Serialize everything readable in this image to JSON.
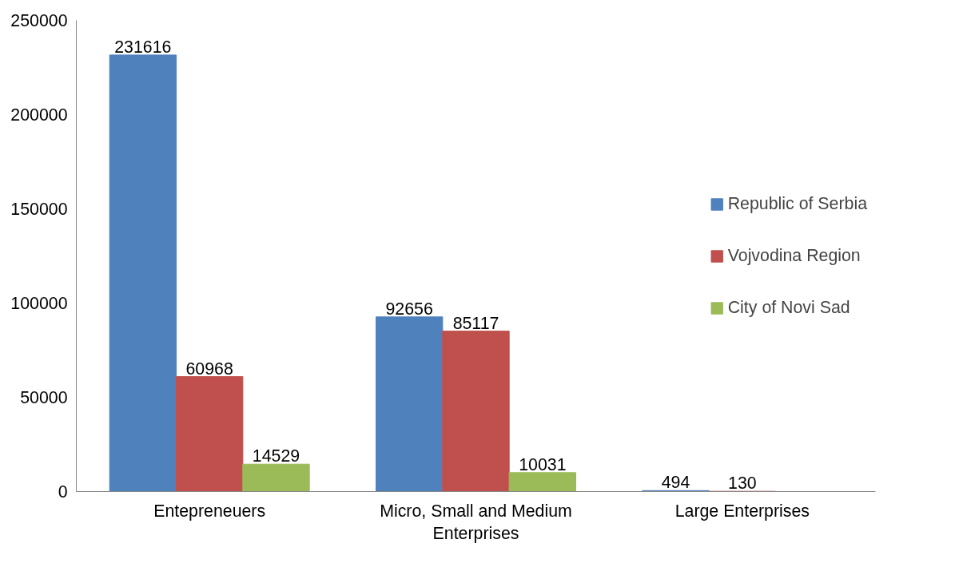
{
  "chart_data": {
    "type": "bar",
    "categories": [
      "Entepreneuers",
      "Micro, Small and Medium Enterprises",
      "Large Enterprises"
    ],
    "series": [
      {
        "name": "Republic of Serbia",
        "color": "#4f81bd",
        "values": [
          231616,
          92656,
          494
        ],
        "value_labels": [
          "231616",
          "92656",
          "494"
        ]
      },
      {
        "name": "Vojvodina Region",
        "color": "#c0504d",
        "values": [
          60968,
          85117,
          130
        ],
        "value_labels": [
          "60968",
          "85117",
          "130"
        ]
      },
      {
        "name": "City of Novi Sad",
        "color": "#9bbb59",
        "values": [
          14529,
          10031,
          null
        ],
        "value_labels": [
          "14529",
          "10031",
          null
        ]
      }
    ],
    "ylim": [
      0,
      250000
    ],
    "yticks": [
      0,
      50000,
      100000,
      150000,
      200000,
      250000
    ],
    "grid": false,
    "legend": "right"
  }
}
